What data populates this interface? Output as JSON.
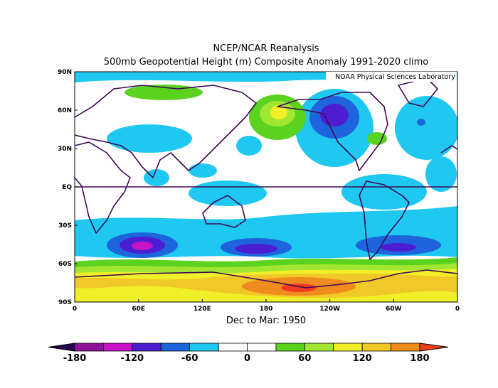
{
  "title": "NCEP/NCAR Reanalysis",
  "subtitle": "500mb Geopotential Height (m) Composite Anomaly 1991-2020 climo",
  "credit": "NOAA Physical Sciences Laboratory",
  "period": "Dec to Mar: 1950",
  "lat_labels": [
    "90N",
    "60N",
    "30N",
    "EQ",
    "30S",
    "60S",
    "90S"
  ],
  "lon_labels": [
    "0",
    "60E",
    "120E",
    "180",
    "120W",
    "60W",
    "0"
  ],
  "colorbar": {
    "levels": [
      -180,
      -120,
      -60,
      0,
      60,
      120,
      180
    ],
    "colors": [
      "#2a0050",
      "#8c1496",
      "#c814c8",
      "#4b1ed2",
      "#1e64dc",
      "#1ec8f0",
      "#ffffff",
      "#ffffff",
      "#5ad21e",
      "#a0e632",
      "#f0f028",
      "#f0c828",
      "#f08c1e",
      "#f03c1e"
    ]
  }
}
